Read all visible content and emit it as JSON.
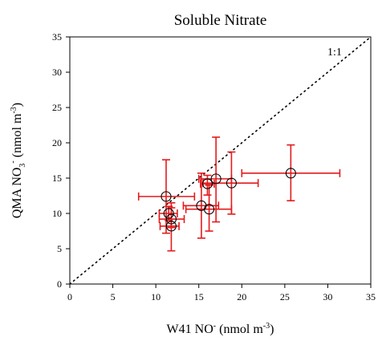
{
  "chart_data": {
    "type": "scatter",
    "title": "Soluble Nitrate",
    "xlabel": {
      "pre": "W41 NO",
      "sup1": "-",
      "unit_pre": " (nmol m",
      "sup2": "-3",
      "unit_post": ")"
    },
    "ylabel": {
      "pre": "QMA NO",
      "sub": "3",
      "sup1": "-",
      "unit_pre": " (nmol m",
      "sup2": "-3",
      "unit_post": ")"
    },
    "xlim": [
      0,
      35
    ],
    "ylim": [
      0,
      35
    ],
    "xticks": [
      0,
      5,
      10,
      15,
      20,
      25,
      30,
      35
    ],
    "yticks": [
      0,
      5,
      10,
      15,
      20,
      25,
      30,
      35
    ],
    "reference_line": {
      "label": "1:1",
      "style": "dotted"
    },
    "errorbar_color": "#e41a1c",
    "marker": "open-circle",
    "points": [
      {
        "x": 11.2,
        "y": 12.4,
        "xerr": [
          8.0,
          14.5
        ],
        "yerr": [
          7.2,
          17.6
        ]
      },
      {
        "x": 11.5,
        "y": 10.0,
        "xerr": [
          10.4,
          12.5
        ],
        "yerr": [
          9.0,
          11.0
        ]
      },
      {
        "x": 11.8,
        "y": 9.2,
        "xerr": [
          10.4,
          13.3
        ],
        "yerr": [
          8.0,
          10.8
        ]
      },
      {
        "x": 11.8,
        "y": 8.2,
        "xerr": [
          10.5,
          12.7
        ],
        "yerr": [
          4.7,
          11.5
        ]
      },
      {
        "x": 15.3,
        "y": 11.1,
        "xerr": [
          13.2,
          17.3
        ],
        "yerr": [
          6.5,
          15.7
        ]
      },
      {
        "x": 16.0,
        "y": 14.2,
        "xerr": [
          15.2,
          16.8
        ],
        "yerr": [
          12.6,
          15.4
        ]
      },
      {
        "x": 16.2,
        "y": 10.6,
        "xerr": [
          13.5,
          18.8
        ],
        "yerr": [
          7.5,
          14.0
        ]
      },
      {
        "x": 17.0,
        "y": 14.9,
        "xerr": [
          15.0,
          18.8
        ],
        "yerr": [
          8.8,
          20.8
        ]
      },
      {
        "x": 18.8,
        "y": 14.3,
        "xerr": [
          15.5,
          21.9
        ],
        "yerr": [
          9.9,
          18.7
        ]
      },
      {
        "x": 25.7,
        "y": 15.7,
        "xerr": [
          20.0,
          31.4
        ],
        "yerr": [
          11.8,
          19.7
        ]
      }
    ]
  }
}
